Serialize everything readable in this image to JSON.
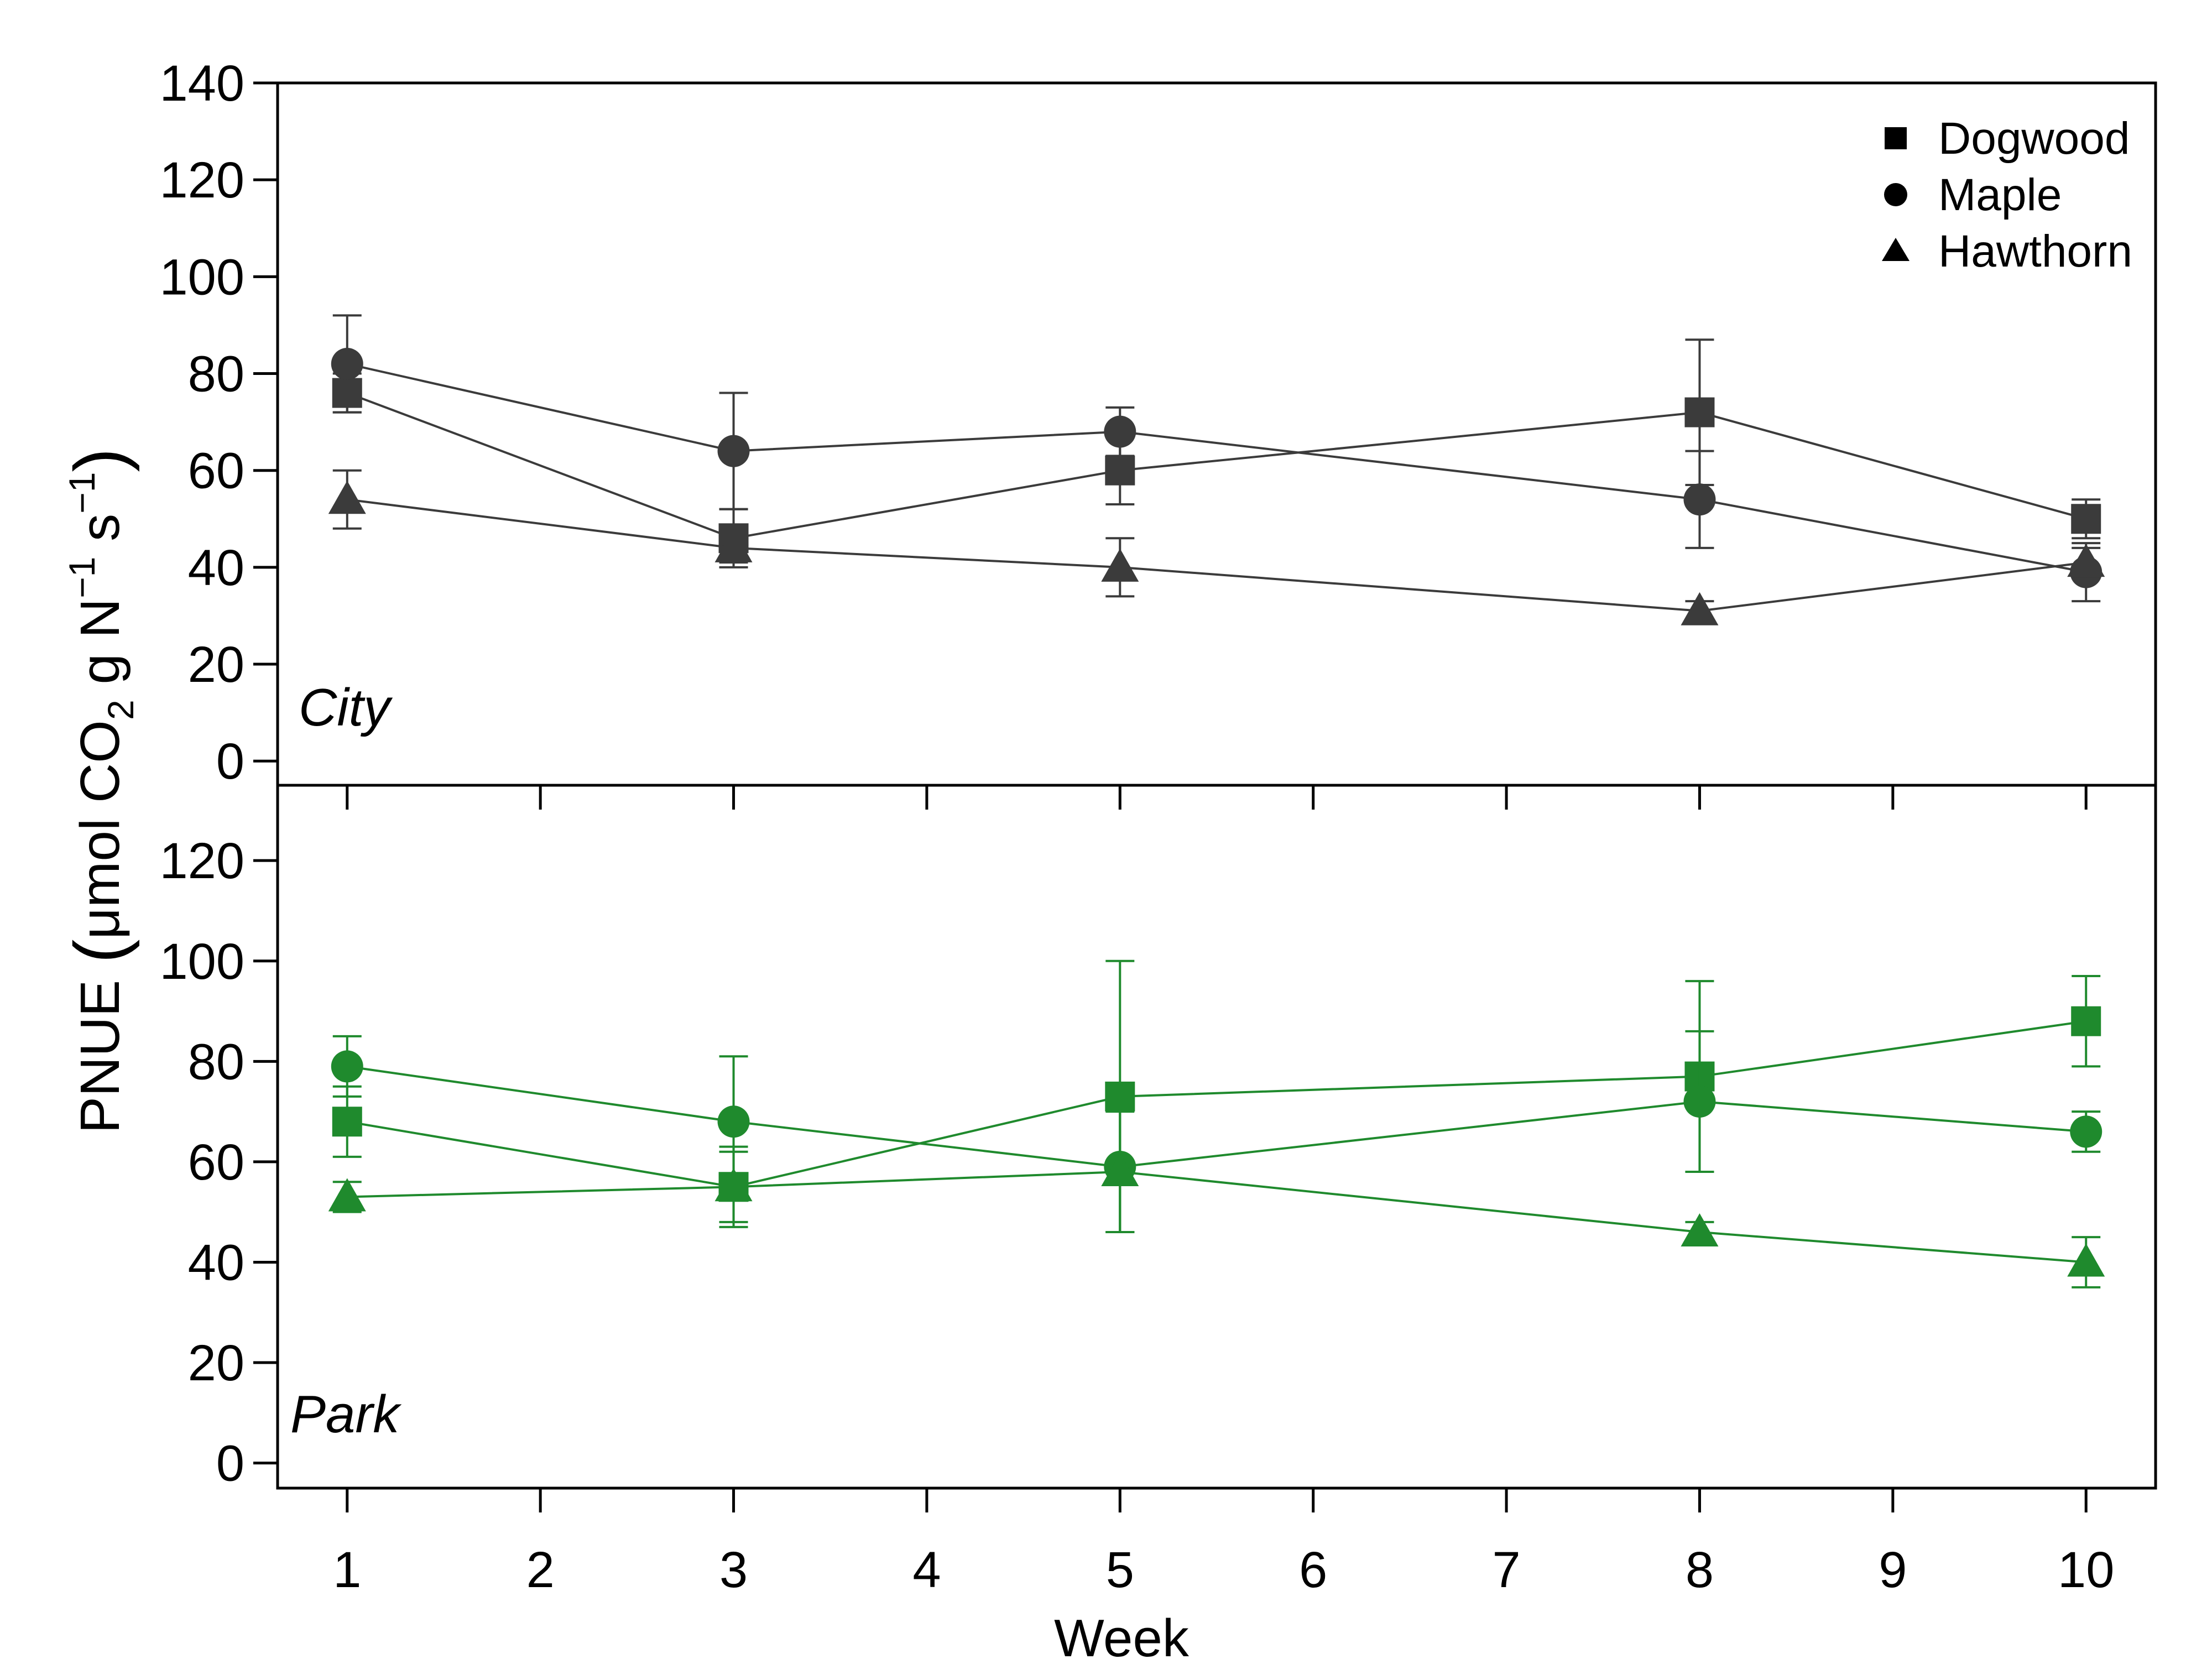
{
  "chart_data": {
    "type": "line",
    "xlabel": "Week",
    "ylabel": {
      "prefix": "PNUE",
      "unit_main": "μmol CO",
      "unit_sub": "2",
      "unit_mid": " g N",
      "unit_sup1": "−1",
      "unit_mid2": " s",
      "unit_sup2": "−1"
    },
    "x_ticks": [
      1,
      2,
      3,
      4,
      5,
      6,
      7,
      8,
      9,
      10
    ],
    "xlim": [
      0.64,
      10.36
    ],
    "legend": {
      "position": "top-right",
      "entries": [
        {
          "label": "Dogwood",
          "marker": "square"
        },
        {
          "label": "Maple",
          "marker": "circle"
        },
        {
          "label": "Hawthorn",
          "marker": "triangle"
        }
      ]
    },
    "panels": [
      {
        "name": "City",
        "color": "#3b3b3b",
        "ylim": [
          -5,
          140
        ],
        "y_ticks": [
          0,
          20,
          40,
          60,
          80,
          100,
          120,
          140
        ],
        "series": [
          {
            "name": "Dogwood",
            "marker": "square",
            "x": [
              1,
              3,
              5,
              8,
              10
            ],
            "y": [
              76,
              46,
              60,
              72,
              50
            ],
            "err": [
              4,
              6,
              7,
              15,
              4
            ]
          },
          {
            "name": "Maple",
            "marker": "circle",
            "x": [
              1,
              3,
              5,
              8,
              10
            ],
            "y": [
              82,
              64,
              68,
              54,
              39
            ],
            "err": [
              10,
              12,
              5,
              10,
              6
            ]
          },
          {
            "name": "Hawthorn",
            "marker": "triangle",
            "x": [
              1,
              3,
              5,
              8,
              10
            ],
            "y": [
              54,
              44,
              40,
              31,
              41
            ],
            "err": [
              6,
              3,
              6,
              2,
              3
            ]
          }
        ]
      },
      {
        "name": "Park",
        "color": "#1f8a2d",
        "ylim": [
          -5,
          135
        ],
        "y_ticks": [
          0,
          20,
          40,
          60,
          80,
          100,
          120
        ],
        "series": [
          {
            "name": "Dogwood",
            "marker": "square",
            "x": [
              1,
              3,
              5,
              8,
              10
            ],
            "y": [
              68,
              55,
              73,
              77,
              88
            ],
            "err": [
              7,
              7,
              27,
              19,
              9
            ]
          },
          {
            "name": "Maple",
            "marker": "circle",
            "x": [
              1,
              3,
              5,
              8,
              10
            ],
            "y": [
              79,
              68,
              59,
              72,
              66
            ],
            "err": [
              6,
              13,
              13,
              14,
              4
            ]
          },
          {
            "name": "Hawthorn",
            "marker": "triangle",
            "x": [
              1,
              3,
              5,
              8,
              10
            ],
            "y": [
              53,
              55,
              58,
              46,
              40
            ],
            "err": [
              3,
              8,
              12,
              2,
              5
            ]
          }
        ]
      }
    ]
  }
}
